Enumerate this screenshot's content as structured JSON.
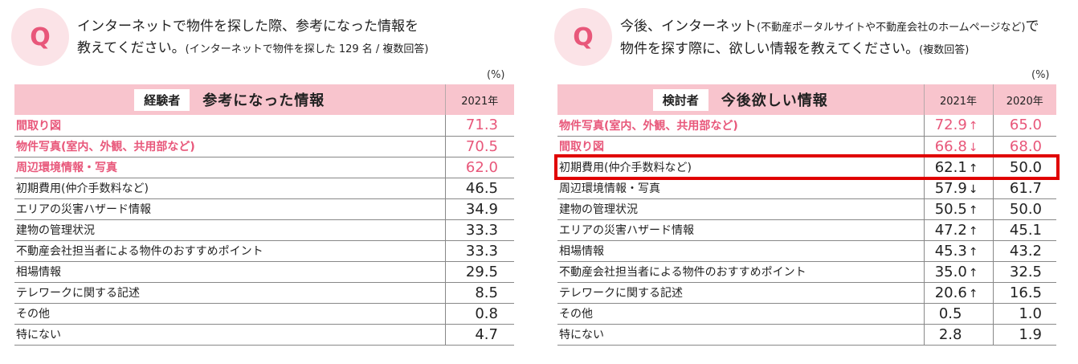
{
  "left": {
    "question_line1": "インターネットで物件を探した際、参考になった情報を",
    "question_line2": "教えてください。",
    "question_note": "(インターネットで物件を探した 129 名 / 複数回答)",
    "unit": "(%)",
    "tag": "経験者",
    "title": "参考になった情報",
    "year": "2021年",
    "rows": [
      {
        "label": "間取り図",
        "v2021": "71.3",
        "highlight": true
      },
      {
        "label": "物件写真(室内、外観、共用部など)",
        "v2021": "70.5",
        "highlight": true
      },
      {
        "label": "周辺環境情報・写真",
        "v2021": "62.0",
        "highlight": true
      },
      {
        "label": "初期費用(仲介手数料など)",
        "v2021": "46.5",
        "highlight": false
      },
      {
        "label": "エリアの災害ハザード情報",
        "v2021": "34.9",
        "highlight": false
      },
      {
        "label": "建物の管理状況",
        "v2021": "33.3",
        "highlight": false
      },
      {
        "label": "不動産会社担当者による物件のおすすめポイント",
        "v2021": "33.3",
        "highlight": false
      },
      {
        "label": "相場情報",
        "v2021": "29.5",
        "highlight": false
      },
      {
        "label": "テレワークに関する記述",
        "v2021": "8.5",
        "highlight": false
      },
      {
        "label": "その他",
        "v2021": "0.8",
        "highlight": false
      },
      {
        "label": "特にない",
        "v2021": "4.7",
        "highlight": false
      }
    ]
  },
  "right": {
    "question_line1a": "今後、インターネット",
    "question_line1_note": "(不動産ポータルサイトや不動産会社のホームページなど)",
    "question_line1b": "で",
    "question_line2": "物件を探す際に、欲しい情報を教えてください。",
    "question_note": "(複数回答)",
    "unit": "(%)",
    "tag": "検討者",
    "title": "今後欲しい情報",
    "year_a": "2021年",
    "year_b": "2020年",
    "rows": [
      {
        "label": "物件写真(室内、外観、共用部など)",
        "v2021": "72.9",
        "trend": "↑",
        "v2020": "65.0",
        "highlight": true
      },
      {
        "label": "間取り図",
        "v2021": "66.8",
        "trend": "↓",
        "v2020": "68.0",
        "highlight": true
      },
      {
        "label": "初期費用(仲介手数料など)",
        "v2021": "62.1",
        "trend": "↑",
        "v2020": "50.0",
        "highlight": false
      },
      {
        "label": "周辺環境情報・写真",
        "v2021": "57.9",
        "trend": "↓",
        "v2020": "61.7",
        "highlight": false
      },
      {
        "label": "建物の管理状況",
        "v2021": "50.5",
        "trend": "↑",
        "v2020": "50.0",
        "highlight": false
      },
      {
        "label": "エリアの災害ハザード情報",
        "v2021": "47.2",
        "trend": "↑",
        "v2020": "45.1",
        "highlight": false
      },
      {
        "label": "相場情報",
        "v2021": "45.3",
        "trend": "↑",
        "v2020": "43.2",
        "highlight": false
      },
      {
        "label": "不動産会社担当者による物件のおすすめポイント",
        "v2021": "35.0",
        "trend": "↑",
        "v2020": "32.5",
        "highlight": false
      },
      {
        "label": "テレワークに関する記述",
        "v2021": "20.6",
        "trend": "↑",
        "v2020": "16.5",
        "highlight": false
      },
      {
        "label": "その他",
        "v2021": "0.5",
        "trend": "",
        "v2020": "1.0",
        "highlight": false
      },
      {
        "label": "特にない",
        "v2021": "2.8",
        "trend": "",
        "v2020": "1.9",
        "highlight": false
      }
    ]
  },
  "colors": {
    "accent": "#e8577a",
    "header_bg": "#f8c4cd",
    "q_bg": "#fbe3e7",
    "highlight_box": "#e00000"
  }
}
